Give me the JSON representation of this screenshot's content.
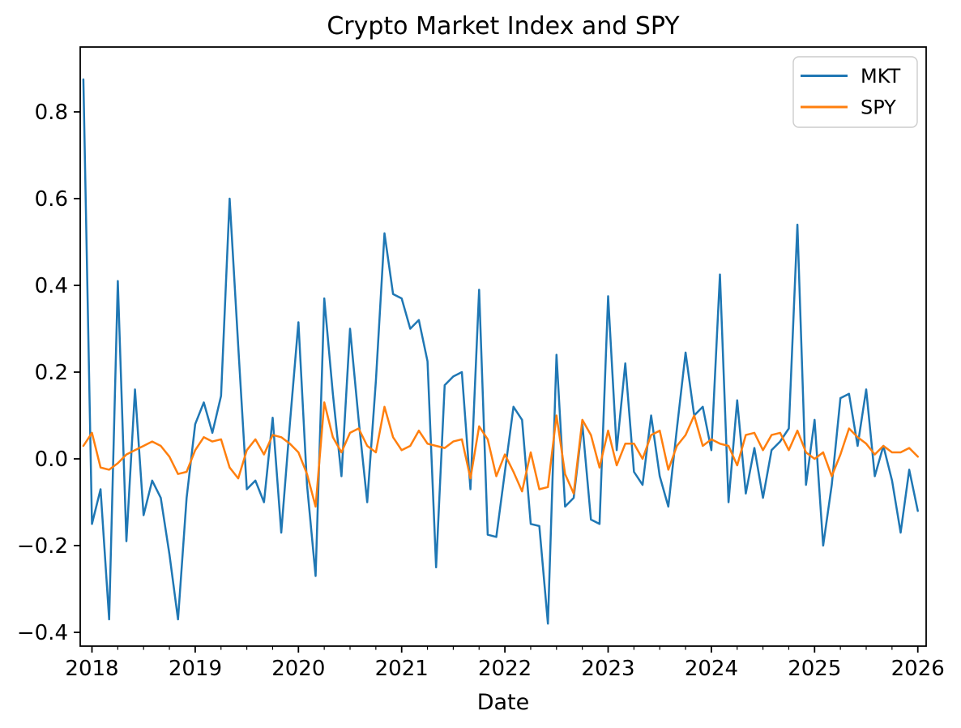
{
  "title": "Crypto Market Index and SPY",
  "x_axis": {
    "label": "Date",
    "tick_labels": [
      "2018",
      "2019",
      "2020",
      "2021",
      "2022",
      "2023",
      "2024",
      "2025",
      "2026"
    ],
    "tick_years": [
      2018,
      2019,
      2020,
      2021,
      2022,
      2023,
      2024,
      2025,
      2026
    ],
    "minor_ticks": "quarterly"
  },
  "y_axis": {
    "label": "",
    "tick_labels": [
      "0.8",
      "0.6",
      "0.4",
      "0.2",
      "0.0",
      "−0.2",
      "−0.4"
    ],
    "tick_values": [
      0.8,
      0.6,
      0.4,
      0.2,
      0.0,
      -0.2,
      -0.4
    ]
  },
  "legend": {
    "position": "upper right",
    "entries": [
      {
        "label": "MKT",
        "color": "#1f77b4"
      },
      {
        "label": "SPY",
        "color": "#ff7f0e"
      }
    ]
  },
  "colors": {
    "mkt": "#1f77b4",
    "spy": "#ff7f0e",
    "spine": "#000000",
    "text": "#000000",
    "legend_border": "#cccccc",
    "background": "#ffffff"
  },
  "chart_data": {
    "type": "line",
    "title": "Crypto Market Index and SPY",
    "xlabel": "Date",
    "ylabel": "",
    "grid": false,
    "legend_position": "upper right",
    "x_start": "2017-12",
    "x_end": "2026-01",
    "x_freq": "monthly",
    "n_points": 98,
    "ylim": [
      -0.432,
      0.95
    ],
    "series": [
      {
        "name": "MKT",
        "color": "#1f77b4",
        "values": [
          0.875,
          -0.15,
          -0.07,
          -0.37,
          0.41,
          -0.19,
          0.16,
          -0.13,
          -0.05,
          -0.09,
          -0.22,
          -0.37,
          -0.09,
          0.08,
          0.13,
          0.06,
          0.145,
          0.6,
          0.26,
          -0.07,
          -0.05,
          -0.1,
          0.095,
          -0.17,
          0.08,
          0.315,
          -0.06,
          -0.27,
          0.37,
          0.15,
          -0.04,
          0.3,
          0.09,
          -0.1,
          0.18,
          0.52,
          0.38,
          0.37,
          0.3,
          0.32,
          0.225,
          -0.25,
          0.17,
          0.19,
          0.2,
          -0.07,
          0.39,
          -0.175,
          -0.18,
          -0.03,
          0.12,
          0.09,
          -0.15,
          -0.155,
          -0.38,
          0.24,
          -0.11,
          -0.09,
          0.08,
          -0.14,
          -0.15,
          0.375,
          0.02,
          0.22,
          -0.03,
          -0.06,
          0.1,
          -0.04,
          -0.11,
          0.07,
          0.245,
          0.1,
          0.12,
          0.02,
          0.425,
          -0.1,
          0.135,
          -0.08,
          0.025,
          -0.09,
          0.02,
          0.04,
          0.07,
          0.54,
          -0.06,
          0.09,
          -0.2,
          -0.06,
          0.14,
          0.15,
          0.03,
          0.16,
          -0.04,
          0.03,
          -0.05,
          -0.17,
          -0.025,
          -0.12
        ]
      },
      {
        "name": "SPY",
        "color": "#ff7f0e",
        "values": [
          0.03,
          0.06,
          -0.02,
          -0.025,
          -0.01,
          0.01,
          0.02,
          0.03,
          0.04,
          0.03,
          0.005,
          -0.035,
          -0.03,
          0.02,
          0.05,
          0.04,
          0.045,
          -0.02,
          -0.045,
          0.02,
          0.045,
          0.01,
          0.055,
          0.05,
          0.035,
          0.015,
          -0.035,
          -0.11,
          0.13,
          0.05,
          0.015,
          0.06,
          0.07,
          0.03,
          0.015,
          0.12,
          0.05,
          0.02,
          0.03,
          0.065,
          0.035,
          0.03,
          0.025,
          0.04,
          0.045,
          -0.045,
          0.075,
          0.045,
          -0.04,
          0.01,
          -0.03,
          -0.075,
          0.015,
          -0.07,
          -0.065,
          0.1,
          -0.035,
          -0.08,
          0.09,
          0.055,
          -0.02,
          0.065,
          -0.015,
          0.035,
          0.035,
          0.0,
          0.055,
          0.065,
          -0.025,
          0.03,
          0.055,
          0.1,
          0.03,
          0.045,
          0.035,
          0.03,
          -0.015,
          0.055,
          0.06,
          0.02,
          0.055,
          0.06,
          0.02,
          0.065,
          0.015,
          0.0,
          0.015,
          -0.04,
          0.01,
          0.07,
          0.05,
          0.035,
          0.01,
          0.03,
          0.015,
          0.015,
          0.025,
          0.005
        ]
      }
    ]
  }
}
